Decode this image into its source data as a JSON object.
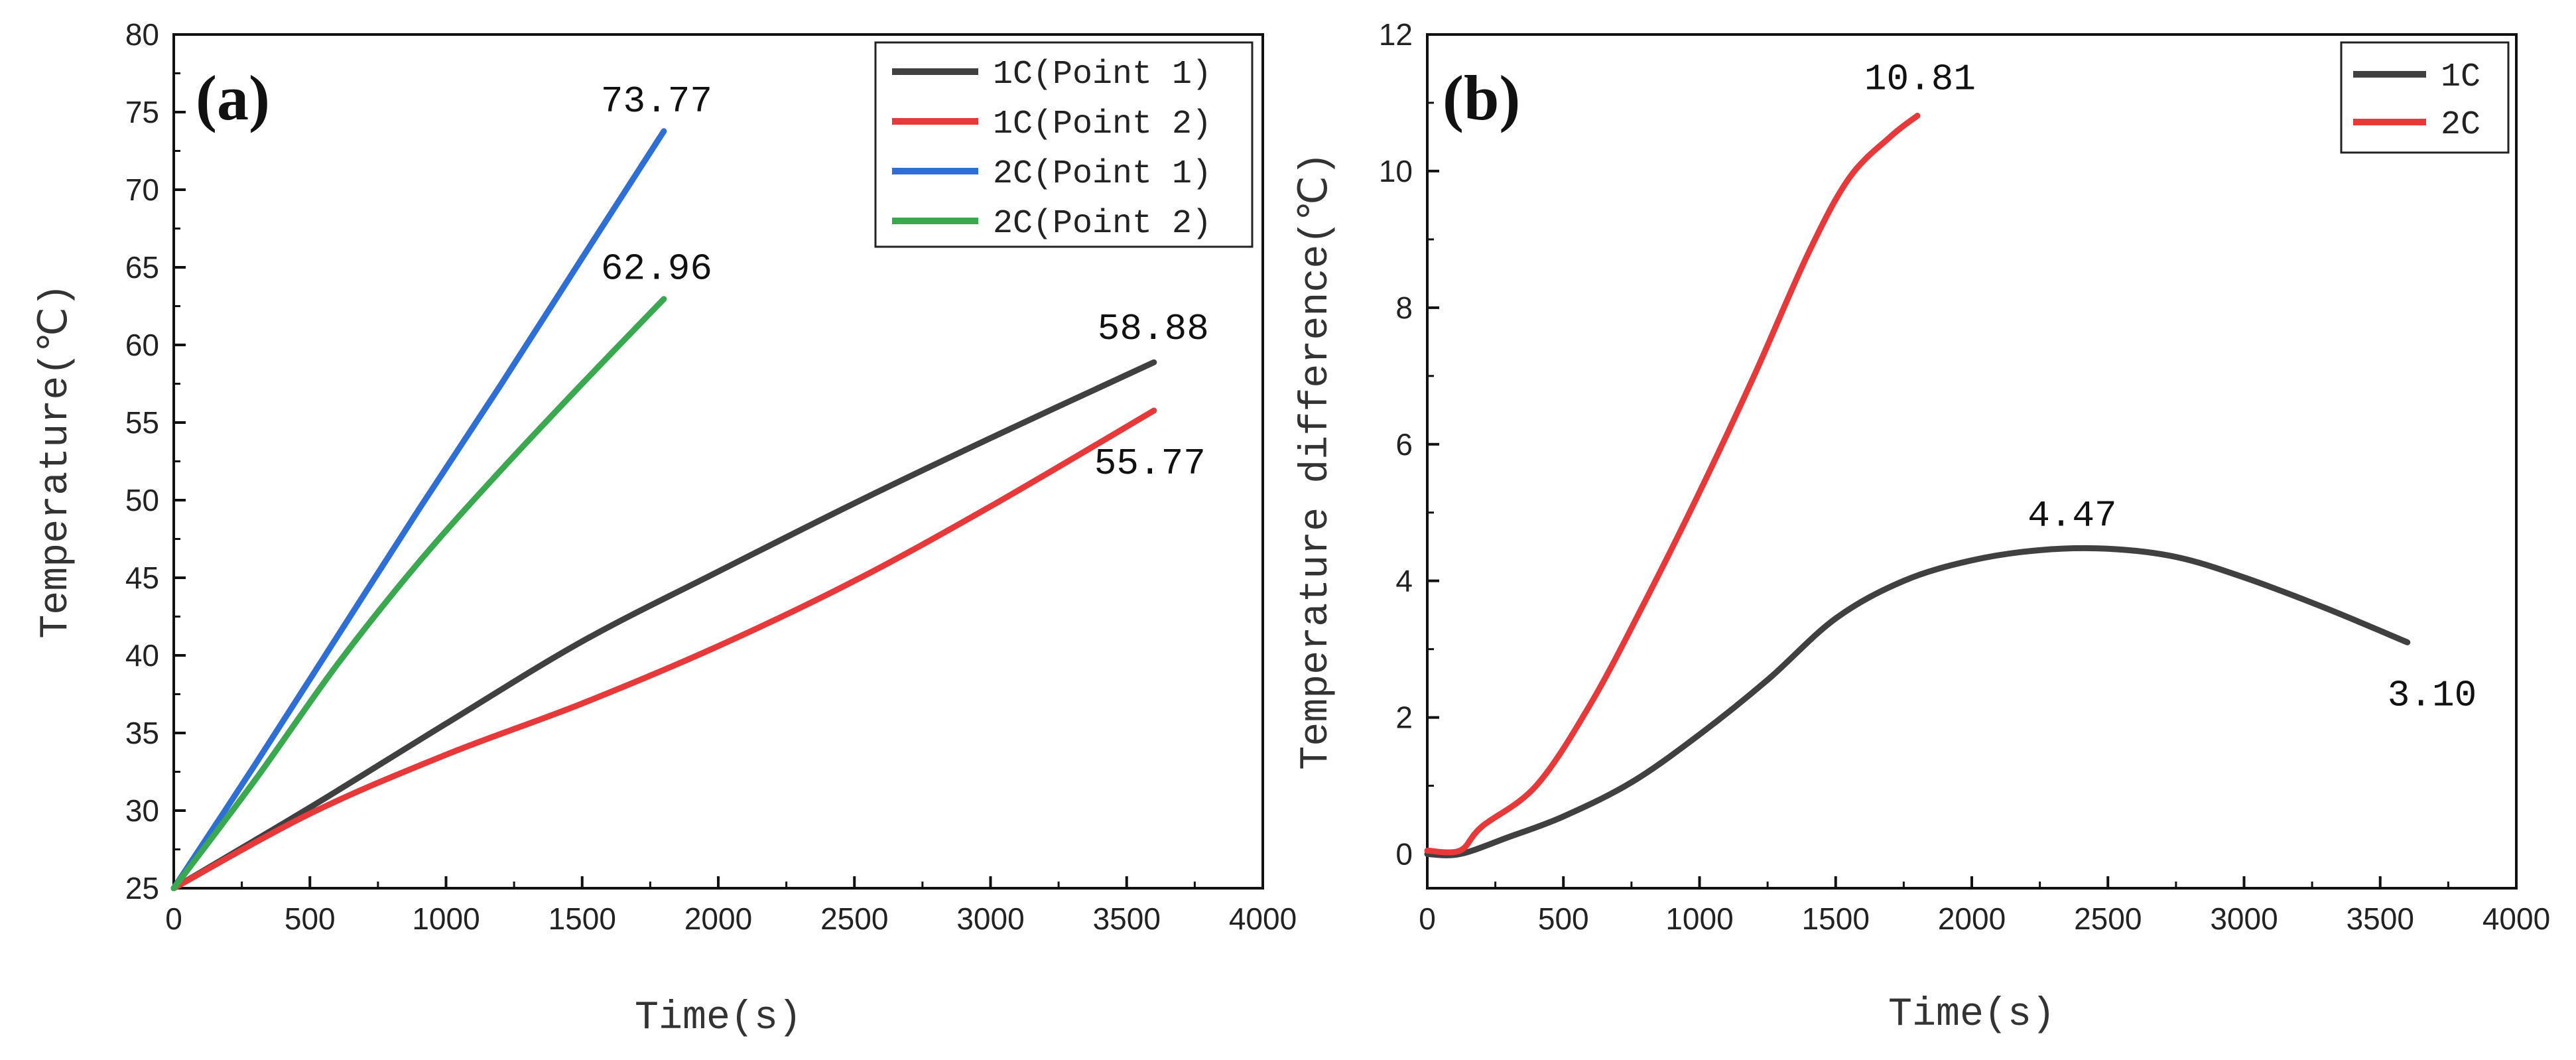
{
  "chart_data": [
    {
      "type": "line",
      "panel_label": "(a)",
      "xlabel": "Time(s)",
      "ylabel": "Temperature(℃)",
      "xlim": [
        0,
        4000
      ],
      "ylim": [
        25,
        80
      ],
      "xticks": [
        0,
        500,
        1000,
        1500,
        2000,
        2500,
        3000,
        3500,
        4000
      ],
      "yticks": [
        25,
        30,
        35,
        40,
        45,
        50,
        55,
        60,
        65,
        70,
        75,
        80
      ],
      "grid": false,
      "legend_position": "top-right",
      "series": [
        {
          "name": "1C(Point 1)",
          "color": "#404040",
          "x": [
            0,
            500,
            1000,
            1500,
            2000,
            2500,
            3000,
            3600
          ],
          "y": [
            25,
            30.2,
            35.6,
            40.9,
            45.4,
            49.8,
            54.0,
            58.88
          ]
        },
        {
          "name": "1C(Point 2)",
          "color": "#e8393a",
          "x": [
            0,
            500,
            1000,
            1500,
            2000,
            2500,
            3000,
            3600
          ],
          "y": [
            25,
            29.8,
            33.6,
            36.9,
            40.6,
            44.8,
            49.6,
            55.77
          ]
        },
        {
          "name": "2C(Point 1)",
          "color": "#2e6fd6",
          "x": [
            0,
            300,
            600,
            900,
            1200,
            1500,
            1800
          ],
          "y": [
            25,
            33.0,
            41.2,
            49.4,
            57.4,
            65.6,
            73.77
          ]
        },
        {
          "name": "2C(Point 2)",
          "color": "#3aa84e",
          "x": [
            0,
            300,
            600,
            900,
            1200,
            1500,
            1800
          ],
          "y": [
            25,
            32.0,
            39.4,
            46.0,
            51.9,
            57.5,
            62.96
          ]
        }
      ],
      "annotations": [
        {
          "text": "73.77",
          "x": 1800,
          "y": 73.77
        },
        {
          "text": "62.96",
          "x": 1800,
          "y": 62.96
        },
        {
          "text": "58.88",
          "x": 3600,
          "y": 58.88
        },
        {
          "text": "55.77",
          "x": 3600,
          "y": 55.77
        }
      ]
    },
    {
      "type": "line",
      "panel_label": "(b)",
      "xlabel": "Time(s)",
      "ylabel": "Temperature difference(℃)",
      "xlim": [
        0,
        4000
      ],
      "ylim": [
        -0.5,
        12
      ],
      "xticks": [
        0,
        500,
        1000,
        1500,
        2000,
        2500,
        3000,
        3500,
        4000
      ],
      "yticks": [
        0,
        2,
        4,
        6,
        8,
        10,
        12
      ],
      "grid": false,
      "legend_position": "top-right",
      "series": [
        {
          "name": "1C",
          "color": "#404040",
          "x": [
            0,
            120,
            300,
            500,
            750,
            1000,
            1250,
            1500,
            1750,
            2000,
            2250,
            2500,
            2750,
            3000,
            3300,
            3600
          ],
          "y": [
            0,
            0,
            0.25,
            0.55,
            1.05,
            1.75,
            2.55,
            3.45,
            4.0,
            4.3,
            4.45,
            4.47,
            4.35,
            4.05,
            3.6,
            3.1
          ]
        },
        {
          "name": "2C",
          "color": "#e8393a",
          "x": [
            0,
            120,
            200,
            400,
            600,
            800,
            1000,
            1200,
            1400,
            1550,
            1700,
            1800
          ],
          "y": [
            0.05,
            0.05,
            0.4,
            1.0,
            2.2,
            3.7,
            5.3,
            7.0,
            8.8,
            9.9,
            10.5,
            10.81
          ]
        }
      ],
      "annotations": [
        {
          "text": "10.81",
          "x": 1800,
          "y": 10.81
        },
        {
          "text": "4.47",
          "x": 2400,
          "y": 4.47
        },
        {
          "text": "3.10",
          "x": 3600,
          "y": 3.1
        }
      ]
    }
  ]
}
